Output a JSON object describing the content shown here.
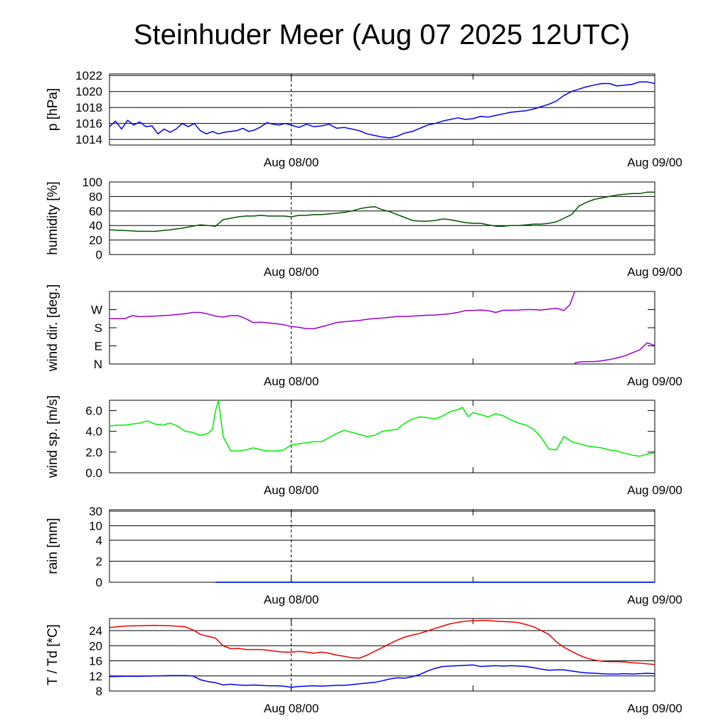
{
  "page": {
    "title": "Steinhuder Meer (Aug 07 2025 12UTC)"
  },
  "chart_data": [
    {
      "type": "line",
      "ylabel": "p [hPa]",
      "ylim": [
        1013.3,
        1022.2
      ],
      "yticks": [
        1014,
        1016,
        1018,
        1020,
        1022
      ],
      "ytick_labels": [
        "1014",
        "1016",
        "1018",
        "1020",
        "1022"
      ],
      "grid": true,
      "xlim": [
        0,
        36
      ],
      "xtick_labels": [
        {
          "x": 12,
          "label": "Aug 08/00"
        },
        {
          "x": 36,
          "label": "Aug 09/00"
        }
      ],
      "series": [
        {
          "color": "#0000ee",
          "x": [
            0,
            0.4,
            0.8,
            1.2,
            1.6,
            2.0,
            2.4,
            2.8,
            3.2,
            3.6,
            4.0,
            4.4,
            4.8,
            5.2,
            5.6,
            6.0,
            6.4,
            6.8,
            7.2,
            7.6,
            8.0,
            8.4,
            8.8,
            9.2,
            9.6,
            10.0,
            10.4,
            10.8,
            11.2,
            11.6,
            12.0,
            12.5,
            13.0,
            13.5,
            14.0,
            14.5,
            15.0,
            15.5,
            16.0,
            16.5,
            17.0,
            17.5,
            18.0,
            18.5,
            19.0,
            19.5,
            20.0,
            20.5,
            21.0,
            21.5,
            22.0,
            22.5,
            23.0,
            23.5,
            24.0,
            24.5,
            25.0,
            25.5,
            26.0,
            26.5,
            27.0,
            27.5,
            28.0,
            28.5,
            29.0,
            29.5,
            30.0,
            30.5,
            31.0,
            31.5,
            32.0,
            32.5,
            33.0,
            33.5,
            34.0,
            34.5,
            35.0,
            35.5,
            36.0
          ],
          "y": [
            1015.6,
            1016.3,
            1015.3,
            1016.4,
            1015.8,
            1016.2,
            1015.6,
            1015.7,
            1014.7,
            1015.3,
            1014.9,
            1015.3,
            1016.0,
            1015.6,
            1016.0,
            1015.1,
            1014.7,
            1015.0,
            1014.7,
            1014.9,
            1015.0,
            1015.1,
            1015.4,
            1015.0,
            1015.2,
            1015.6,
            1016.1,
            1015.9,
            1015.8,
            1016.0,
            1015.8,
            1015.5,
            1015.9,
            1015.6,
            1015.7,
            1015.9,
            1015.4,
            1015.5,
            1015.3,
            1015.1,
            1014.7,
            1014.5,
            1014.3,
            1014.2,
            1014.4,
            1014.8,
            1015.0,
            1015.4,
            1015.8,
            1016.0,
            1016.3,
            1016.5,
            1016.7,
            1016.5,
            1016.6,
            1016.9,
            1016.8,
            1017.0,
            1017.2,
            1017.4,
            1017.5,
            1017.6,
            1017.8,
            1018.1,
            1018.4,
            1018.8,
            1019.5,
            1020.0,
            1020.3,
            1020.6,
            1020.8,
            1021.0,
            1021.0,
            1020.7,
            1020.8,
            1020.9,
            1021.2,
            1021.2,
            1021.0
          ]
        }
      ]
    },
    {
      "type": "line",
      "ylabel": "humidity [%]",
      "ylim": [
        0,
        100
      ],
      "yticks": [
        0,
        20,
        40,
        60,
        80,
        100
      ],
      "ytick_labels": [
        "0",
        "20",
        "40",
        "60",
        "80",
        "100"
      ],
      "grid": true,
      "xlim": [
        0,
        36
      ],
      "xtick_labels": [
        {
          "x": 12,
          "label": "Aug 08/00"
        },
        {
          "x": 36,
          "label": "Aug 09/00"
        }
      ],
      "series": [
        {
          "color": "#005500",
          "x": [
            0,
            1,
            2,
            3,
            4,
            5,
            6,
            6.5,
            7,
            7.5,
            8,
            8.5,
            9,
            9.5,
            10,
            10.5,
            11,
            11.5,
            12,
            12.5,
            13,
            13.5,
            14,
            14.5,
            15,
            15.5,
            16,
            16.5,
            17,
            17.5,
            18,
            18.5,
            19,
            19.5,
            20,
            20.5,
            21,
            21.5,
            22,
            22.5,
            23,
            23.5,
            24,
            24.5,
            25,
            25.5,
            26,
            26.5,
            27,
            27.5,
            28,
            28.5,
            29,
            29.5,
            30,
            30.5,
            31,
            31.5,
            32,
            32.5,
            33,
            33.5,
            34,
            34.5,
            35,
            35.5,
            36
          ],
          "y": [
            34,
            33,
            32,
            32,
            34,
            37,
            41,
            40,
            39,
            48,
            50,
            52,
            53,
            53,
            54,
            53,
            53,
            53,
            52,
            54,
            54,
            55,
            55,
            56,
            57,
            58,
            60,
            63,
            65,
            66,
            62,
            59,
            55,
            51,
            47,
            46,
            46,
            47,
            49,
            48,
            46,
            44,
            43,
            43,
            41,
            39,
            39,
            40,
            40,
            41,
            42,
            42,
            43,
            45,
            50,
            55,
            67,
            72,
            76,
            78,
            80,
            82,
            83,
            84,
            84,
            86,
            86
          ]
        }
      ]
    },
    {
      "type": "line",
      "ylabel": "wind dir. [deg.]",
      "ylim": [
        0,
        360
      ],
      "yticks": [
        0,
        90,
        180,
        270
      ],
      "ytick_labels": [
        "N",
        "E",
        "S",
        "W"
      ],
      "grid": false,
      "xlim": [
        0,
        36
      ],
      "xtick_labels": [
        {
          "x": 12,
          "label": "Aug 08/00"
        },
        {
          "x": 36,
          "label": "Aug 09/00"
        }
      ],
      "series": [
        {
          "color": "#9900cc",
          "x": [
            0,
            1,
            1.5,
            2,
            3,
            4,
            5,
            5.5,
            6,
            6.5,
            7,
            7.5,
            8,
            8.5,
            9,
            9.5,
            10,
            10.5,
            11,
            11.5,
            12,
            12.5,
            13,
            13.5,
            14,
            14.5,
            15,
            15.5,
            16,
            16.5,
            17,
            17.5,
            18,
            18.5,
            19,
            19.5,
            20,
            20.5,
            21,
            21.5,
            22,
            22.5,
            23,
            23.5,
            24,
            24.5,
            25,
            25.5,
            26,
            26.5,
            27,
            27.5,
            28,
            28.5,
            29,
            29.5,
            30,
            30.4,
            30.7
          ],
          "y": [
            225,
            225,
            240,
            235,
            238,
            242,
            250,
            256,
            256,
            248,
            238,
            233,
            240,
            240,
            225,
            205,
            208,
            204,
            200,
            195,
            186,
            182,
            175,
            175,
            185,
            195,
            206,
            210,
            213,
            216,
            222,
            226,
            228,
            232,
            236,
            236,
            238,
            240,
            242,
            243,
            246,
            250,
            256,
            265,
            266,
            268,
            265,
            256,
            267,
            267,
            268,
            270,
            270,
            268,
            272,
            277,
            265,
            295,
            357
          ]
        },
        {
          "color": "#9900cc",
          "x": [
            30.7,
            31,
            31.5,
            32,
            32.5,
            33,
            33.5,
            34,
            34.5,
            35,
            35.5,
            36
          ],
          "y": [
            4,
            10,
            12,
            12,
            16,
            22,
            30,
            40,
            55,
            70,
            105,
            92
          ]
        }
      ]
    },
    {
      "type": "line",
      "ylabel": "wind sp. [m/s]",
      "ylim": [
        0,
        7.0
      ],
      "yticks": [
        0,
        2,
        4,
        6
      ],
      "ytick_labels": [
        "0.0",
        "2.0",
        "4.0",
        "6.0"
      ],
      "grid": false,
      "xlim": [
        0,
        36
      ],
      "xtick_labels": [
        {
          "x": 12,
          "label": "Aug 08/00"
        },
        {
          "x": 36,
          "label": "Aug 09/00"
        }
      ],
      "series": [
        {
          "color": "#00ee00",
          "x": [
            0,
            0.5,
            1,
            1.5,
            2,
            2.5,
            3,
            3.5,
            4,
            4.5,
            5,
            5.5,
            6,
            6.5,
            6.8,
            7.0,
            7.2,
            7.5,
            8,
            8.5,
            9,
            9.5,
            10,
            10.5,
            11,
            11.5,
            12,
            12.5,
            13,
            13.5,
            14,
            14.5,
            15,
            15.5,
            16,
            16.5,
            17,
            17.5,
            18,
            18.5,
            19,
            19.5,
            20,
            20.5,
            21,
            21.5,
            22,
            22.5,
            23,
            23.3,
            23.7,
            24,
            24.5,
            25,
            25.5,
            26,
            26.5,
            27,
            27.5,
            28,
            28.5,
            29,
            29.5,
            30,
            30.5,
            31,
            31.5,
            32,
            32.5,
            33,
            33.5,
            34,
            34.5,
            35,
            35.5,
            36
          ],
          "y": [
            4.5,
            4.6,
            4.6,
            4.7,
            4.8,
            5.0,
            4.7,
            4.6,
            4.8,
            4.5,
            4.0,
            3.9,
            3.6,
            3.8,
            4.2,
            6.0,
            7.0,
            3.5,
            2.1,
            2.1,
            2.2,
            2.4,
            2.2,
            2.1,
            2.1,
            2.2,
            2.7,
            2.8,
            2.9,
            3.0,
            3.0,
            3.4,
            3.8,
            4.1,
            3.9,
            3.7,
            3.5,
            3.6,
            4.0,
            4.1,
            4.2,
            4.8,
            5.2,
            5.4,
            5.3,
            5.2,
            5.5,
            5.9,
            6.1,
            6.3,
            5.4,
            5.8,
            5.6,
            5.4,
            5.7,
            5.5,
            5.1,
            4.8,
            4.6,
            4.2,
            3.4,
            2.3,
            2.2,
            3.5,
            3.0,
            2.8,
            2.6,
            2.5,
            2.4,
            2.2,
            2.1,
            1.9,
            1.7,
            1.6,
            1.8,
            1.9
          ]
        }
      ]
    },
    {
      "type": "line",
      "ylabel": "rain [mm]",
      "ylim": [
        0,
        30
      ],
      "yticks": [
        0,
        2,
        4,
        10,
        30
      ],
      "ytick_labels": [
        "0",
        "2",
        "4",
        "10",
        "30"
      ],
      "scale": "nonlinear",
      "grid": true,
      "xlim": [
        0,
        36
      ],
      "xtick_labels": [
        {
          "x": 12,
          "label": "Aug 08/00"
        },
        {
          "x": 36,
          "label": "Aug 09/00"
        }
      ],
      "series": [
        {
          "color": "#00aa00",
          "x": [
            7,
            36
          ],
          "y": [
            0,
            0
          ]
        },
        {
          "color": "#0000ee",
          "x": [
            7,
            36
          ],
          "y": [
            0,
            0
          ]
        }
      ]
    },
    {
      "type": "line",
      "ylabel": "T / Td [*C]",
      "ylim": [
        8,
        27.2
      ],
      "yticks": [
        8,
        12,
        16,
        20,
        24
      ],
      "ytick_labels": [
        "8",
        "12",
        "16",
        "20",
        "24"
      ],
      "grid": true,
      "xlim": [
        0,
        36
      ],
      "xtick_labels": [
        {
          "x": 12,
          "label": "Aug 08/00"
        },
        {
          "x": 36,
          "label": "Aug 09/00"
        }
      ],
      "series": [
        {
          "color": "#ee0000",
          "x": [
            0,
            1,
            2,
            3,
            4,
            5,
            5.5,
            6,
            6.5,
            7,
            7.5,
            8,
            8.5,
            9,
            9.5,
            10,
            10.5,
            11,
            11.5,
            12,
            12.5,
            13,
            13.5,
            14,
            14.5,
            15,
            15.5,
            16,
            16.5,
            17,
            17.5,
            18,
            18.5,
            19,
            19.5,
            20,
            20.5,
            21,
            21.5,
            22,
            22.5,
            23,
            23.5,
            24,
            24.5,
            25,
            25.5,
            26,
            26.5,
            27,
            27.5,
            28,
            28.5,
            29,
            29.5,
            30,
            30.5,
            31,
            31.5,
            32,
            32.5,
            33,
            33.5,
            34,
            34.5,
            35,
            35.5,
            36
          ],
          "y": [
            24.8,
            25.2,
            25.3,
            25.4,
            25.3,
            25.0,
            24.2,
            23.0,
            22.5,
            22.0,
            20.0,
            19.2,
            19.3,
            19.0,
            19.0,
            19.0,
            18.8,
            18.5,
            18.3,
            18.3,
            18.5,
            18.3,
            18.0,
            18.3,
            18.0,
            17.5,
            17.2,
            16.8,
            16.7,
            17.5,
            18.5,
            19.5,
            20.5,
            21.5,
            22.3,
            22.8,
            23.3,
            23.9,
            24.6,
            25.2,
            25.8,
            26.2,
            26.5,
            26.6,
            26.7,
            26.7,
            26.5,
            26.4,
            26.3,
            26.1,
            25.6,
            25.0,
            24.0,
            23.0,
            21.0,
            19.6,
            18.5,
            17.5,
            16.7,
            16.2,
            15.9,
            15.8,
            15.8,
            15.7,
            15.5,
            15.4,
            15.2,
            15.0
          ]
        },
        {
          "color": "#0000ee",
          "x": [
            0,
            1,
            2,
            3,
            4,
            5,
            5.5,
            6,
            6.5,
            7,
            7.5,
            8,
            8.5,
            9,
            9.5,
            10,
            10.5,
            11,
            11.5,
            12,
            12.5,
            13,
            13.5,
            14,
            14.5,
            15,
            15.5,
            16,
            16.5,
            17,
            17.5,
            18,
            18.5,
            19,
            19.5,
            20,
            20.5,
            21,
            21.5,
            22,
            22.5,
            23,
            23.5,
            24,
            24.5,
            25,
            25.5,
            26,
            26.5,
            27,
            27.5,
            28,
            28.5,
            29,
            29.5,
            30,
            30.5,
            31,
            31.5,
            32,
            32.5,
            33,
            33.5,
            34,
            34.5,
            35,
            35.5,
            36
          ],
          "y": [
            11.8,
            11.9,
            11.9,
            12.0,
            12.1,
            12.1,
            12.0,
            11.0,
            10.5,
            10.2,
            9.6,
            9.8,
            9.6,
            9.5,
            9.6,
            9.5,
            9.4,
            9.4,
            9.3,
            9.0,
            9.2,
            9.3,
            9.4,
            9.3,
            9.4,
            9.5,
            9.5,
            9.7,
            9.9,
            10.1,
            10.3,
            10.7,
            11.2,
            11.5,
            11.4,
            11.8,
            12.4,
            13.3,
            14.0,
            14.5,
            14.6,
            14.7,
            14.8,
            14.9,
            14.5,
            14.6,
            14.7,
            14.6,
            14.7,
            14.6,
            14.5,
            14.2,
            13.8,
            13.5,
            13.6,
            13.6,
            13.3,
            13.0,
            12.8,
            12.7,
            12.6,
            12.5,
            12.5,
            12.6,
            12.5,
            12.6,
            12.7,
            12.6
          ]
        }
      ]
    }
  ]
}
